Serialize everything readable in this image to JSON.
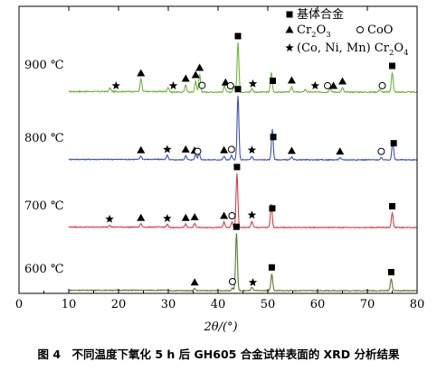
{
  "chart_data": {
    "type": "line",
    "xlabel": "2θ/(°)",
    "xlim": [
      0,
      80
    ],
    "x_ticks": [
      0,
      10,
      20,
      30,
      40,
      50,
      60,
      70,
      80
    ],
    "legend": {
      "placement": "top-right",
      "entries": [
        {
          "symbol": "square",
          "text": "基体合金"
        },
        {
          "symbol": "triangle",
          "text": "Cr",
          "sub": "2",
          "text2": "O",
          "sub2": "3"
        },
        {
          "symbol": "circle",
          "text": "CoO"
        },
        {
          "symbol": "star",
          "text": "(Co, Ni, Mn) Cr",
          "sub": "2",
          "text2": "O",
          "sub2": "4"
        }
      ]
    },
    "series": [
      {
        "name": "900 ℃",
        "color": "#6ab83a",
        "peaks": [
          [
            18.3,
            0.04
          ],
          [
            24.5,
            0.14
          ],
          [
            30.0,
            0.05
          ],
          [
            33.5,
            0.08
          ],
          [
            35.5,
            0.12
          ],
          [
            36.3,
            0.2
          ],
          [
            41.3,
            0.07
          ],
          [
            43.2,
            0.06
          ],
          [
            44.0,
            0.55
          ],
          [
            46.8,
            0.04
          ],
          [
            50.7,
            0.22
          ],
          [
            54.8,
            0.06
          ],
          [
            57.5,
            0.03
          ],
          [
            62.5,
            0.05
          ],
          [
            65.0,
            0.05
          ],
          [
            72.5,
            0.03
          ],
          [
            75.0,
            0.22
          ]
        ],
        "markers": [
          {
            "x": 19.5,
            "symbol": "star"
          },
          {
            "x": 24.5,
            "symbol": "triangle"
          },
          {
            "x": 31.0,
            "symbol": "star"
          },
          {
            "x": 33.5,
            "symbol": "triangle"
          },
          {
            "x": 35.5,
            "symbol": "triangle"
          },
          {
            "x": 36.3,
            "symbol": "triangle"
          },
          {
            "x": 36.8,
            "symbol": "circle"
          },
          {
            "x": 41.5,
            "symbol": "triangle"
          },
          {
            "x": 42.5,
            "symbol": "circle"
          },
          {
            "x": 44.0,
            "symbol": "square"
          },
          {
            "x": 47.0,
            "symbol": "star"
          },
          {
            "x": 51.0,
            "symbol": "square"
          },
          {
            "x": 54.8,
            "symbol": "triangle"
          },
          {
            "x": 59.5,
            "symbol": "star"
          },
          {
            "x": 62.0,
            "symbol": "circle"
          },
          {
            "x": 63.2,
            "symbol": "triangle"
          },
          {
            "x": 65.0,
            "symbol": "triangle"
          },
          {
            "x": 73.0,
            "symbol": "circle"
          },
          {
            "x": 75.0,
            "symbol": "square"
          }
        ]
      },
      {
        "name": "800 ℃",
        "color": "#3a52b8",
        "peaks": [
          [
            24.5,
            0.05
          ],
          [
            29.8,
            0.06
          ],
          [
            33.5,
            0.06
          ],
          [
            35.5,
            0.08
          ],
          [
            36.2,
            0.1
          ],
          [
            41.2,
            0.05
          ],
          [
            42.7,
            0.06
          ],
          [
            44.0,
            0.95
          ],
          [
            46.8,
            0.05
          ],
          [
            50.9,
            0.45
          ],
          [
            54.8,
            0.04
          ],
          [
            64.5,
            0.03
          ],
          [
            72.8,
            0.03
          ],
          [
            75.1,
            0.28
          ]
        ],
        "markers": [
          {
            "x": 24.5,
            "symbol": "triangle"
          },
          {
            "x": 29.8,
            "symbol": "star"
          },
          {
            "x": 33.5,
            "symbol": "triangle"
          },
          {
            "x": 35.3,
            "symbol": "triangle"
          },
          {
            "x": 35.9,
            "symbol": "circle"
          },
          {
            "x": 41.2,
            "symbol": "triangle"
          },
          {
            "x": 42.7,
            "symbol": "circle"
          },
          {
            "x": 44.0,
            "symbol": "square"
          },
          {
            "x": 46.8,
            "symbol": "star"
          },
          {
            "x": 51.1,
            "symbol": "square"
          },
          {
            "x": 54.8,
            "symbol": "triangle"
          },
          {
            "x": 64.5,
            "symbol": "triangle"
          },
          {
            "x": 72.8,
            "symbol": "circle"
          },
          {
            "x": 75.3,
            "symbol": "square"
          }
        ]
      },
      {
        "name": "700 ℃",
        "color": "#d94040",
        "peaks": [
          [
            18.2,
            0.03
          ],
          [
            24.5,
            0.05
          ],
          [
            29.8,
            0.04
          ],
          [
            33.5,
            0.05
          ],
          [
            35.3,
            0.06
          ],
          [
            41.2,
            0.08
          ],
          [
            42.8,
            0.08
          ],
          [
            43.8,
            0.8
          ],
          [
            46.8,
            0.09
          ],
          [
            50.7,
            0.35
          ],
          [
            75.0,
            0.22
          ]
        ],
        "markers": [
          {
            "x": 18.2,
            "symbol": "star"
          },
          {
            "x": 24.5,
            "symbol": "triangle"
          },
          {
            "x": 29.8,
            "symbol": "star"
          },
          {
            "x": 33.5,
            "symbol": "triangle"
          },
          {
            "x": 35.3,
            "symbol": "triangle"
          },
          {
            "x": 41.2,
            "symbol": "triangle"
          },
          {
            "x": 42.8,
            "symbol": "circle"
          },
          {
            "x": 43.8,
            "symbol": "square"
          },
          {
            "x": 46.8,
            "symbol": "star"
          },
          {
            "x": 50.9,
            "symbol": "square"
          },
          {
            "x": 75.0,
            "symbol": "square"
          }
        ]
      },
      {
        "name": "600 ℃",
        "color": "#5a7a2a",
        "peaks": [
          [
            35.3,
            0.03
          ],
          [
            42.9,
            0.04
          ],
          [
            43.7,
            0.85
          ],
          [
            46.8,
            0.05
          ],
          [
            50.8,
            0.25
          ],
          [
            74.8,
            0.18
          ]
        ],
        "markers": [
          {
            "x": 35.3,
            "symbol": "triangle"
          },
          {
            "x": 42.9,
            "symbol": "circle"
          },
          {
            "x": 43.7,
            "symbol": "square"
          },
          {
            "x": 47.0,
            "symbol": "star"
          },
          {
            "x": 50.8,
            "symbol": "square"
          },
          {
            "x": 74.8,
            "symbol": "square"
          }
        ]
      }
    ]
  },
  "caption": "图 4　不同温度下氧化 5 h 后 GH605 合金试样表面的 XRD 分析结果"
}
